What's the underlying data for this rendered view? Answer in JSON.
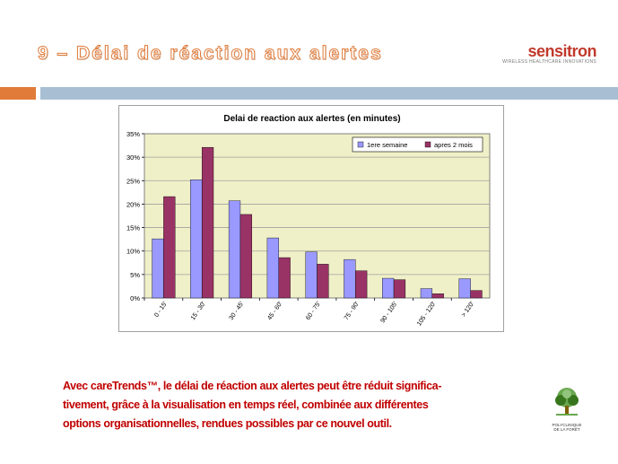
{
  "slide": {
    "title": "9 – Délai de réaction aux alertes",
    "brand": "sensitron",
    "brand_tagline": "WIRELESS HEALTHCARE INNOVATIONS",
    "clinic_name_1": "POLYCLINIQUE",
    "clinic_name_2": "DE LA FORÊT",
    "caption_lines": [
      "Avec careTrends™, le délai de réaction aux alertes peut être réduit significa-",
      "tivement, grâce à la visualisation en temps réel, combinée aux différentes",
      "options organisationnelles, rendues possibles par ce nouvel outil."
    ]
  },
  "colors": {
    "accent_orange": "#e07b39",
    "band_blue": "#a8bfd3",
    "caption_red": "#c00000",
    "series1": "#9999ff",
    "series2": "#993366",
    "plot_bg": "#f0f0c8"
  },
  "chart_data": {
    "type": "bar",
    "title": "Delai de reaction aux alertes (en minutes)",
    "categories": [
      "0 - 15'",
      "15 - 30'",
      "30 - 45'",
      "45 - 60'",
      "60 - 75'",
      "75 - 90'",
      "90 - 105'",
      "105 - 120'",
      "> 120'"
    ],
    "series": [
      {
        "name": "1ere semaine",
        "values": [
          12.6,
          25.2,
          20.7,
          12.8,
          9.8,
          8.2,
          4.2,
          2.0,
          4.1
        ]
      },
      {
        "name": "apres 2 mois",
        "values": [
          21.6,
          32.1,
          17.8,
          8.6,
          7.2,
          5.8,
          3.9,
          0.9,
          1.6
        ]
      }
    ],
    "yticks": [
      "0%",
      "5%",
      "10%",
      "15%",
      "20%",
      "25%",
      "30%",
      "35%"
    ],
    "ylim": [
      0,
      35
    ],
    "xlabel": "",
    "ylabel": "",
    "grid": true,
    "legend": "top-right"
  }
}
